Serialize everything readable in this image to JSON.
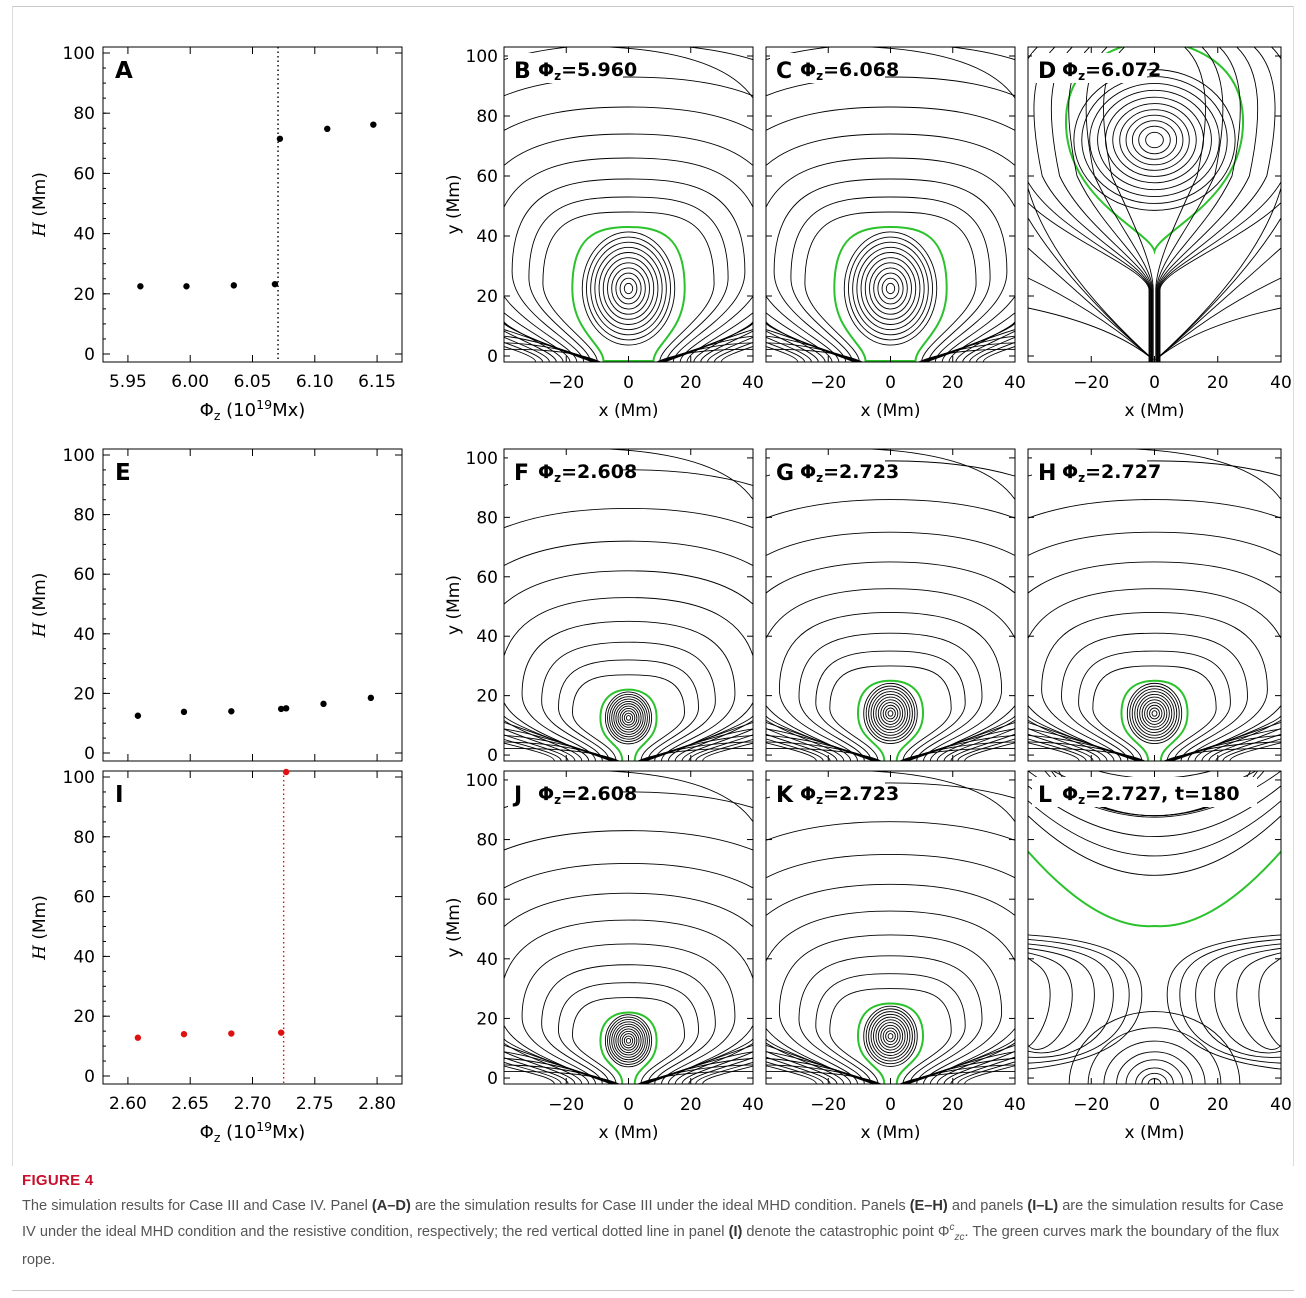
{
  "figure": {
    "label": "FIGURE 4",
    "caption_parts": [
      {
        "t": "The simulation results for Case III and Case IV. Panel ",
        "b": false
      },
      {
        "t": "(A–D)",
        "b": true
      },
      {
        "t": " are the simulation results for Case III under the ideal MHD condition. Panels ",
        "b": false
      },
      {
        "t": "(E–H)",
        "b": true
      },
      {
        "t": " and panels ",
        "b": false
      },
      {
        "t": "(I–L)",
        "b": true
      },
      {
        "t": " are the simulation results for Case IV under the ideal MHD condition and the resistive condition, respectively; the red vertical dotted line in panel ",
        "b": false
      },
      {
        "t": "(I)",
        "b": true
      },
      {
        "t": " denote the catastrophic point Φ",
        "b": false
      },
      {
        "t": "c",
        "b": false,
        "sup": true
      },
      {
        "t": "zc",
        "b": false,
        "sub": true
      },
      {
        "t": ". The green curves mark the boundary of the flux rope.",
        "b": false
      }
    ]
  },
  "colors": {
    "black": "#000000",
    "green": "#2bc22b",
    "red": "#e01010",
    "caption_red": "#c8102e"
  },
  "chart_data": [
    {
      "panel": "A",
      "type": "scatter",
      "ylabel": "H (Mm)",
      "xlabel": "Φz (10^19Mx)",
      "xlim": [
        5.93,
        6.17
      ],
      "ylim": [
        0,
        100
      ],
      "xticks": [
        "5.95",
        "6.00",
        "6.05",
        "6.10",
        "6.15"
      ],
      "xtick_values": [
        5.95,
        6.0,
        6.05,
        6.1,
        6.15
      ],
      "yticks": [
        "0",
        "20",
        "40",
        "60",
        "80",
        "100"
      ],
      "ytick_values": [
        0,
        20,
        40,
        60,
        80,
        100
      ],
      "x": [
        5.96,
        5.997,
        6.035,
        6.068,
        6.072,
        6.11,
        6.147
      ],
      "y": [
        22.5,
        22.5,
        22.8,
        23.2,
        71.5,
        74.8,
        76.2
      ],
      "vline": {
        "x": 6.0705,
        "color": "black",
        "style": "dotted"
      },
      "marker_color": "black",
      "show_xaxis_labels": true
    },
    {
      "panel": "E",
      "type": "scatter",
      "ylabel": "H (Mm)",
      "xlabel": "",
      "xlim": [
        2.58,
        2.82
      ],
      "ylim": [
        0,
        100
      ],
      "yticks": [
        "0",
        "20",
        "40",
        "60",
        "80",
        "100"
      ],
      "ytick_values": [
        0,
        20,
        40,
        60,
        80,
        100
      ],
      "x": [
        2.608,
        2.645,
        2.683,
        2.723,
        2.727,
        2.757,
        2.795
      ],
      "y": [
        12.5,
        13.8,
        14.0,
        14.8,
        15.0,
        16.5,
        18.5
      ],
      "marker_color": "black",
      "show_xaxis_labels": false
    },
    {
      "panel": "I",
      "type": "scatter",
      "ylabel": "H (Mm)",
      "xlabel": "Φz (10^19Mx)",
      "xlim": [
        2.58,
        2.82
      ],
      "ylim": [
        0,
        100
      ],
      "xticks": [
        "2.60",
        "2.65",
        "2.70",
        "2.75",
        "2.80"
      ],
      "xtick_values": [
        2.6,
        2.65,
        2.7,
        2.75,
        2.8
      ],
      "yticks": [
        "0",
        "20",
        "40",
        "60",
        "80",
        "100"
      ],
      "ytick_values": [
        0,
        20,
        40,
        60,
        80,
        100
      ],
      "x": [
        2.608,
        2.645,
        2.683,
        2.723,
        2.727
      ],
      "y": [
        12.8,
        14.0,
        14.2,
        14.5,
        101
      ],
      "vline": {
        "x": 2.725,
        "color": "red",
        "style": "dotted"
      },
      "marker_color": "red",
      "show_xaxis_labels": true
    },
    {
      "panel": "B",
      "type": "contour",
      "phi": "5.960",
      "xlim": [
        -40,
        40
      ],
      "ylim": [
        -2,
        103
      ],
      "center_y": 22.5,
      "green_top": 43,
      "green_halfwidth": 19,
      "footpoint": 8,
      "show_ylabel": true,
      "show_xlabel": true
    },
    {
      "panel": "C",
      "type": "contour",
      "phi": "6.068",
      "xlim": [
        -40,
        40
      ],
      "ylim": [
        -2,
        103
      ],
      "center_y": 22.5,
      "green_top": 43,
      "green_halfwidth": 19,
      "footpoint": 8,
      "show_ylabel": false,
      "show_xlabel": true
    },
    {
      "panel": "D",
      "type": "contour",
      "phi": "6.072",
      "xlim": [
        -40,
        40
      ],
      "ylim": [
        -2,
        103
      ],
      "center_y": 72,
      "green_top": 103,
      "green_bottom": 35,
      "show_ylabel": false,
      "show_xlabel": true
    },
    {
      "panel": "F",
      "type": "contour",
      "phi": "2.608",
      "xlim": [
        -40,
        40
      ],
      "ylim": [
        -2,
        103
      ],
      "center_y": 12.5,
      "green_top": 22,
      "green_halfwidth": 9.5,
      "footpoint": 2,
      "show_ylabel": true,
      "show_xlabel": false
    },
    {
      "panel": "G",
      "type": "contour",
      "phi": "2.723",
      "xlim": [
        -40,
        40
      ],
      "ylim": [
        -2,
        103
      ],
      "center_y": 14,
      "green_top": 25,
      "green_halfwidth": 11,
      "footpoint": 2,
      "show_ylabel": false,
      "show_xlabel": false
    },
    {
      "panel": "H",
      "type": "contour",
      "phi": "2.727",
      "xlim": [
        -40,
        40
      ],
      "ylim": [
        -2,
        103
      ],
      "center_y": 14,
      "green_top": 25,
      "green_halfwidth": 11,
      "footpoint": 2,
      "show_ylabel": false,
      "show_xlabel": false
    },
    {
      "panel": "J",
      "type": "contour",
      "phi": "2.608",
      "xlim": [
        -40,
        40
      ],
      "ylim": [
        -2,
        103
      ],
      "center_y": 12.5,
      "green_top": 22,
      "green_halfwidth": 9.5,
      "footpoint": 2,
      "show_ylabel": true,
      "show_xlabel": true
    },
    {
      "panel": "K",
      "type": "contour",
      "phi": "2.723",
      "xlim": [
        -40,
        40
      ],
      "ylim": [
        -2,
        103
      ],
      "center_y": 14,
      "green_top": 25,
      "green_halfwidth": 11,
      "footpoint": 2,
      "show_ylabel": false,
      "show_xlabel": true
    },
    {
      "panel": "L",
      "type": "contour",
      "phi": "2.727",
      "time_label": ", t=180",
      "xlim": [
        -40,
        40
      ],
      "ylim": [
        -2,
        103
      ],
      "green_apex": 51,
      "green_edge": 76,
      "show_ylabel": false,
      "show_xlabel": true
    }
  ],
  "axis_text": {
    "x_mm": "x (Mm)",
    "y_mm": "y (Mm)",
    "H_mm": "H (Mm)",
    "phi_z": "Φz (10^19Mx)",
    "contour_xticks": [
      "−20",
      "0",
      "20",
      "40"
    ],
    "contour_xtick_values": [
      -20,
      0,
      20,
      40
    ],
    "contour_yticks": [
      "0",
      "20",
      "40",
      "60",
      "80",
      "100"
    ],
    "contour_ytick_values": [
      0,
      20,
      40,
      60,
      80,
      100
    ]
  }
}
